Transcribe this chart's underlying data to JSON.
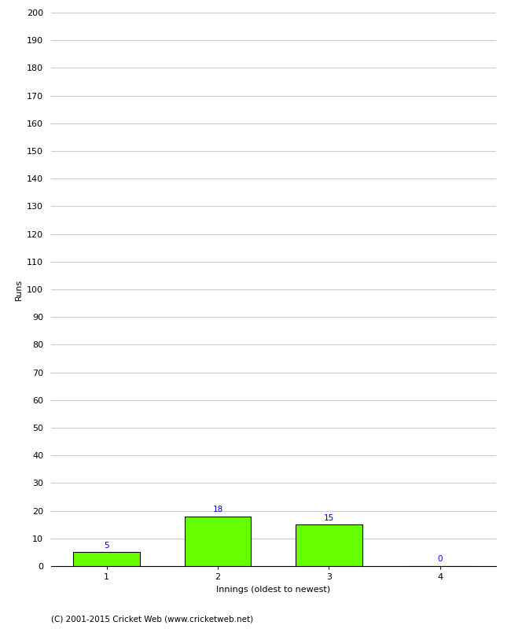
{
  "categories": [
    1,
    2,
    3,
    4
  ],
  "values": [
    5,
    18,
    15,
    0
  ],
  "bar_color": "#66ff00",
  "bar_edge_color": "#000000",
  "label_color": "#0000cc",
  "xlabel": "Innings (oldest to newest)",
  "ylabel": "Runs",
  "ylim": [
    0,
    200
  ],
  "yticks": [
    0,
    10,
    20,
    30,
    40,
    50,
    60,
    70,
    80,
    90,
    100,
    110,
    120,
    130,
    140,
    150,
    160,
    170,
    180,
    190,
    200
  ],
  "label_fontsize": 7.5,
  "axis_label_fontsize": 8,
  "tick_fontsize": 8,
  "footnote": "(C) 2001-2015 Cricket Web (www.cricketweb.net)",
  "footnote_fontsize": 7.5,
  "background_color": "#ffffff",
  "grid_color": "#cccccc",
  "bar_width": 0.6
}
